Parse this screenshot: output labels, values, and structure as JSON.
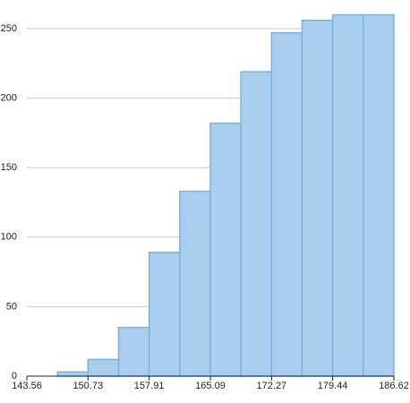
{
  "chart_data": {
    "type": "histogram",
    "bins": [
      147.15,
      150.73,
      154.32,
      157.91,
      161.5,
      165.09,
      168.68,
      172.27,
      175.85,
      179.44,
      183.03,
      186.62
    ],
    "values": [
      3,
      12,
      35,
      89,
      133,
      182,
      219,
      247,
      256,
      260,
      260
    ],
    "color": "#aacfee",
    "edge_color": "#7ab2dd",
    "xlim": [
      143.56,
      186.62
    ],
    "xticks": [
      143.56,
      150.73,
      157.91,
      165.09,
      172.27,
      179.44,
      186.62
    ],
    "ylim": [
      0,
      260
    ],
    "yticks": [
      0,
      50,
      100,
      150,
      200,
      250
    ],
    "grid": true
  }
}
